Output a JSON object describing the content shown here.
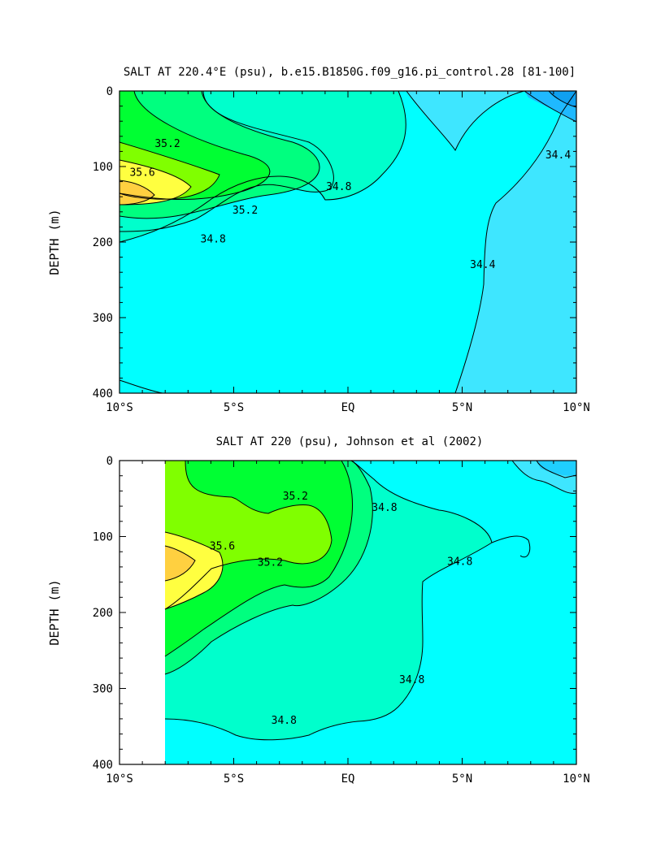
{
  "chart_data": [
    {
      "type": "contour",
      "title": "SALT AT 220.4°E (psu), b.e15.B1850G.f09_g16.pi_control.28 [81-100]",
      "ylabel": "DEPTH (m)",
      "xlabel": "",
      "x_ticks": [
        "10°S",
        "5°S",
        "EQ",
        "5°N",
        "10°N"
      ],
      "x_tick_values": [
        -10,
        -5,
        0,
        5,
        10
      ],
      "y_ticks": [
        "0",
        "100",
        "200",
        "300",
        "400"
      ],
      "y_tick_values": [
        0,
        100,
        200,
        300,
        400
      ],
      "xlim": [
        -10,
        10
      ],
      "ylim": [
        400,
        0
      ],
      "y_inverted": true,
      "contour_levels": [
        34.0,
        34.2,
        34.4,
        34.6,
        34.8,
        35.0,
        35.2,
        35.4,
        35.6,
        35.8
      ],
      "contour_labels": [
        {
          "text": "35.2",
          "x": -7.9,
          "y": 70
        },
        {
          "text": "35.6",
          "x": -9.0,
          "y": 108
        },
        {
          "text": "35.2",
          "x": -4.5,
          "y": 158
        },
        {
          "text": "34.8",
          "x": -5.9,
          "y": 196
        },
        {
          "text": "34.8",
          "x": -0.4,
          "y": 127
        },
        {
          "text": "34.4",
          "x": 5.9,
          "y": 230
        },
        {
          "text": "34.4",
          "x": 9.2,
          "y": 85
        }
      ],
      "fill_colors": [
        "#1fb9ff",
        "#3ee6ff",
        "#00ffff",
        "#00ffcc",
        "#00ff7f",
        "#00ff33",
        "#80ff00",
        "#ffff40",
        "#ffd040"
      ]
    },
    {
      "type": "contour",
      "title": "SALT AT 220 (psu), Johnson et al (2002)",
      "ylabel": "DEPTH (m)",
      "xlabel": "",
      "x_ticks": [
        "10°S",
        "5°S",
        "EQ",
        "5°N",
        "10°N"
      ],
      "x_tick_values": [
        -10,
        -5,
        0,
        5,
        10
      ],
      "y_ticks": [
        "0",
        "100",
        "200",
        "300",
        "400"
      ],
      "y_tick_values": [
        0,
        100,
        200,
        300,
        400
      ],
      "xlim": [
        -10,
        10
      ],
      "ylim": [
        400,
        0
      ],
      "y_inverted": true,
      "data_x_range": [
        -8,
        10
      ],
      "contour_levels": [
        34.6,
        34.8,
        35.0,
        35.2,
        35.4,
        35.6,
        35.8
      ],
      "contour_labels": [
        {
          "text": "35.2",
          "x": -2.3,
          "y": 47
        },
        {
          "text": "35.6",
          "x": -5.5,
          "y": 113
        },
        {
          "text": "35.2",
          "x": -3.4,
          "y": 134
        },
        {
          "text": "34.8",
          "x": 1.6,
          "y": 62
        },
        {
          "text": "34.8",
          "x": 4.9,
          "y": 133
        },
        {
          "text": "34.8",
          "x": 2.8,
          "y": 289
        },
        {
          "text": "34.8",
          "x": -2.8,
          "y": 342
        }
      ],
      "fill_colors": [
        "#00ffff",
        "#00ffcc",
        "#00ff7f",
        "#00ff33",
        "#80ff00",
        "#ffff40",
        "#ffd040"
      ]
    }
  ]
}
